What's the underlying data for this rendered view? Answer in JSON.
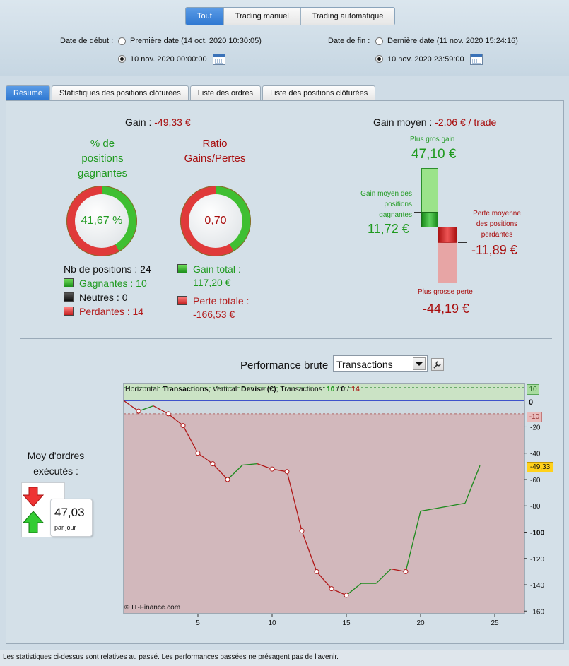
{
  "header": {
    "modes": [
      "Tout",
      "Trading manuel",
      "Trading automatique"
    ],
    "start_label": "Date de début :",
    "start_opt1": "Première date (14 oct. 2020 10:30:05)",
    "start_opt2": "10 nov. 2020 00:00:00",
    "end_label": "Date de fin :",
    "end_opt1": "Dernière date (11 nov. 2020 15:24:16)",
    "end_opt2": "10 nov. 2020 23:59:00"
  },
  "tabs": [
    "Résumé",
    "Statistiques des positions clôturées",
    "Liste des ordres",
    "Liste des positions clôturées"
  ],
  "summary": {
    "gain_label": "Gain :",
    "gain_value": "-49,33 €",
    "pct_title_1": "% de",
    "pct_title_2": "positions",
    "pct_title_3": "gagnantes",
    "pct_value": "41,67 %",
    "ratio_title_1": "Ratio",
    "ratio_title_2": "Gains/Pertes",
    "ratio_value": "0,70",
    "nb_positions": "Nb de positions : 24",
    "gagnantes": "Gagnantes : 10",
    "neutres": "Neutres : 0",
    "perdantes": "Perdantes : 14",
    "gain_total_label": "Gain total :",
    "gain_total_value": "117,20 €",
    "perte_totale_label": "Perte totale :",
    "perte_totale_value": "-166,53 €",
    "pct_fraction": 0.4167,
    "ratio_fraction": 0.4131
  },
  "gain_moyen": {
    "label": "Gain moyen :",
    "value": "-2,06 € / trade",
    "plus_gros_gain_label": "Plus gros gain",
    "plus_gros_gain_value": "47,10 €",
    "gain_moyen_pos_1": "Gain moyen des",
    "gain_moyen_pos_2": "positions",
    "gain_moyen_pos_3": "gagnantes",
    "gain_moyen_pos_value": "11,72 €",
    "perte_moy_1": "Perte moyenne",
    "perte_moy_2": "des positions",
    "perte_moy_3": "perdantes",
    "perte_moy_value": "-11,89 €",
    "plus_grosse_perte_label": "Plus grosse perte",
    "plus_grosse_perte_value": "-44,19 €"
  },
  "orders": {
    "title_1": "Moy d'ordres",
    "title_2": "exécutés :",
    "value": "47,03",
    "unit": "par jour"
  },
  "performance": {
    "title": "Performance brute",
    "select_value": "Transactions",
    "info_prefix": "Horizontal: ",
    "info_h": "Transactions",
    "info_mid": ", Vertical: ",
    "info_v": "Devise (€)",
    "info_tx": ", Transactions: ",
    "info_win": "10",
    "info_sep1": " / ",
    "info_neutral": "0",
    "info_sep2": " / ",
    "info_lose": "14",
    "copyright": "© IT-Finance.com",
    "label_plus10": "10",
    "label_minus10": "-10",
    "label_zero": "0",
    "label_current": "-49,33"
  },
  "chart_data": {
    "type": "line",
    "x": [
      0,
      1,
      2,
      3,
      4,
      5,
      6,
      7,
      8,
      9,
      10,
      11,
      12,
      13,
      14,
      15,
      16,
      17,
      18,
      19,
      20,
      21,
      22,
      23,
      24
    ],
    "y": [
      0,
      -8,
      -4,
      -10,
      -19,
      -40,
      -48,
      -60,
      -49,
      -48,
      -52,
      -54,
      -99,
      -130,
      -143,
      -148,
      -139,
      -139,
      -128,
      -130,
      -84,
      -82,
      -80,
      -78,
      -49.33
    ],
    "xticks": [
      "5",
      "10",
      "15",
      "20",
      "25"
    ],
    "xtick_values": [
      5,
      10,
      15,
      20,
      25
    ],
    "yticks": [
      "-20",
      "-40",
      "-60",
      "-80",
      "-100",
      "-120",
      "-140",
      "-160"
    ],
    "ytick_values": [
      -20,
      -40,
      -60,
      -80,
      -100,
      -120,
      -140,
      -160
    ],
    "xlim": [
      0,
      27
    ],
    "ylim": [
      -162,
      13
    ],
    "colors": {
      "gain": "#1d8a1d",
      "loss": "#b01818",
      "zero_line": "#2a3fc8"
    }
  },
  "footer": "Les statistiques ci-dessus sont relatives au passé. Les performances passées ne présagent pas de l'avenir."
}
